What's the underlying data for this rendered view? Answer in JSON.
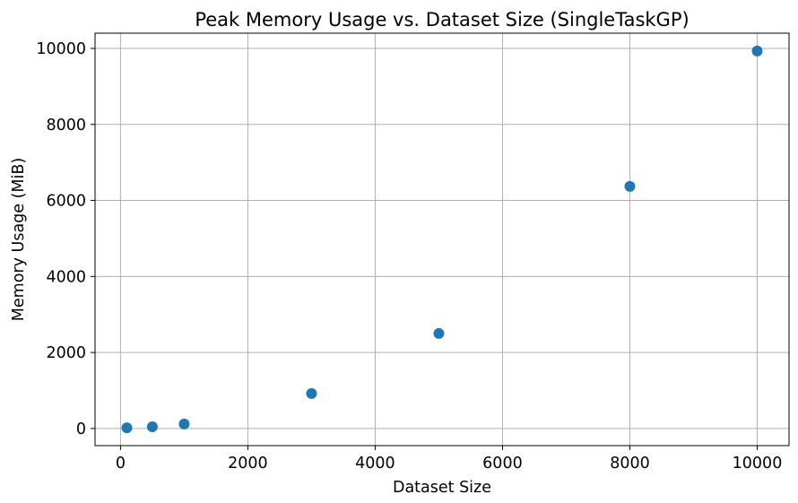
{
  "chart_data": {
    "type": "scatter",
    "title": "Peak Memory Usage vs. Dataset Size (SingleTaskGP)",
    "xlabel": "Dataset Size",
    "ylabel": "Memory Usage (MiB)",
    "xlim": [
      -400,
      10500
    ],
    "ylim": [
      -450,
      10400
    ],
    "x_ticks": [
      0,
      2000,
      4000,
      6000,
      8000,
      10000
    ],
    "y_ticks": [
      0,
      2000,
      4000,
      6000,
      8000,
      10000
    ],
    "grid": true,
    "marker_color": "#1f77b4",
    "series": [
      {
        "x": [
          100,
          500,
          1000,
          3000,
          5000,
          8000,
          10000
        ],
        "y": [
          20,
          45,
          120,
          920,
          2500,
          6370,
          9930
        ]
      }
    ]
  }
}
